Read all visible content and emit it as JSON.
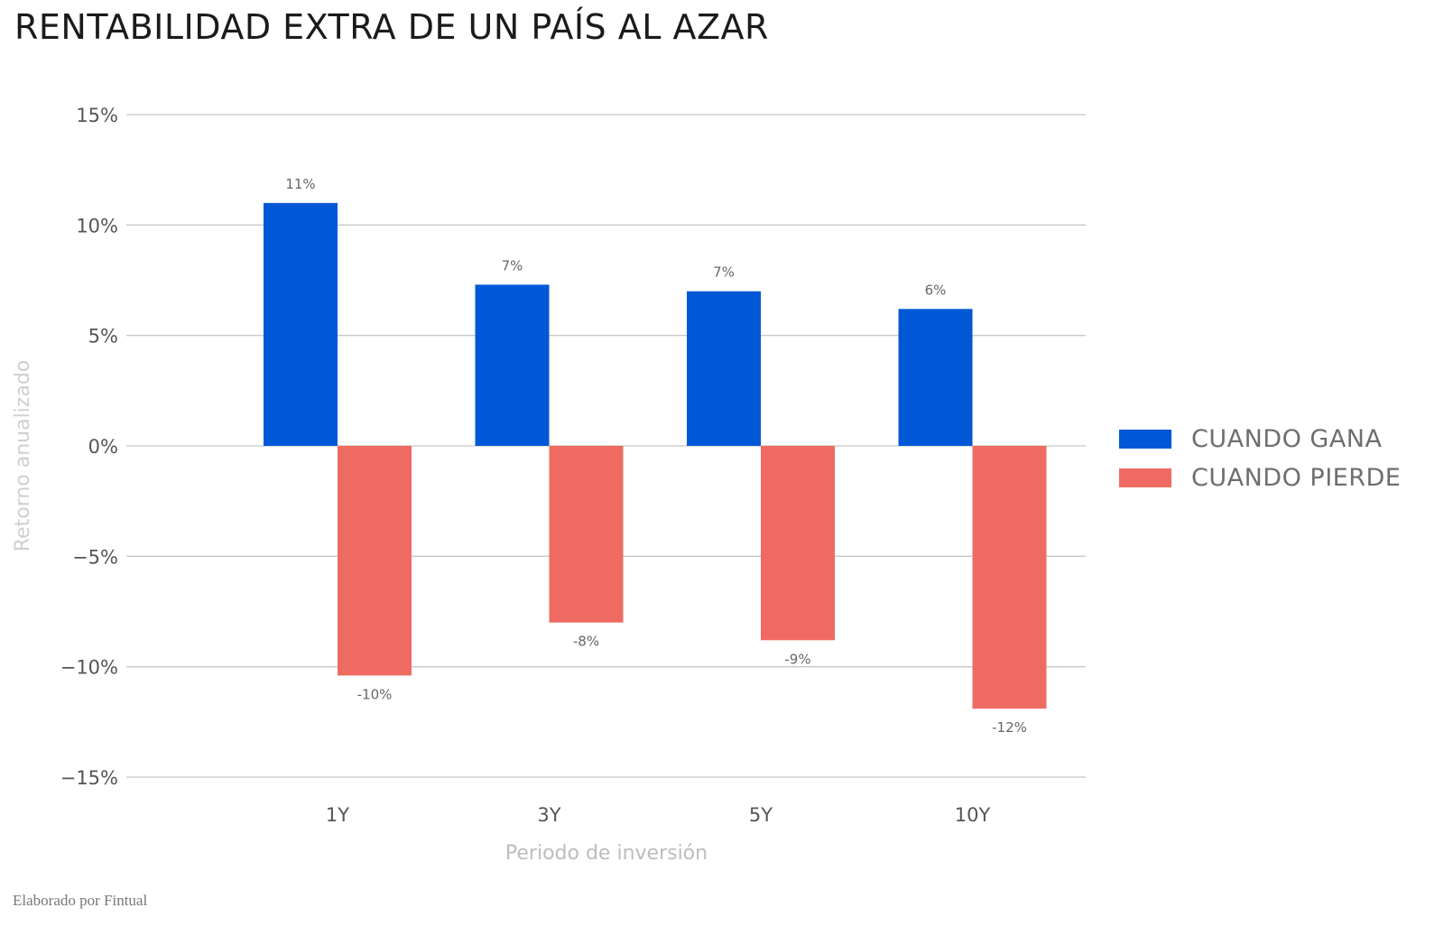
{
  "title": "RENTABILIDAD EXTRA DE UN PAÍS AL AZAR",
  "footer": "Elaborado por Fintual",
  "chart_data": {
    "type": "bar",
    "title": "RENTABILIDAD EXTRA DE UN PAÍS AL AZAR",
    "xlabel": "Periodo de inversión",
    "ylabel": "Retorno anualizado",
    "categories": [
      "1Y",
      "3Y",
      "5Y",
      "10Y"
    ],
    "series": [
      {
        "name": "CUANDO GANA",
        "color": "#0058d6",
        "values": [
          11.0,
          7.3,
          7.0,
          6.2
        ],
        "labels": [
          "11%",
          "7%",
          "7%",
          "6%"
        ]
      },
      {
        "name": "CUANDO PIERDE",
        "color": "#ef6b62",
        "values": [
          -10.4,
          -8.0,
          -8.8,
          -11.9
        ],
        "labels": [
          "-10%",
          "-8%",
          "-9%",
          "-12%"
        ]
      }
    ],
    "ylim": [
      -15,
      15
    ],
    "yticks": [
      15,
      10,
      5,
      0,
      -5,
      -10,
      -15
    ],
    "ytick_labels": [
      "15%",
      "10%",
      "5%",
      "0%",
      "−5%",
      "−10%",
      "−15%"
    ],
    "grid": true,
    "legend": "right"
  }
}
